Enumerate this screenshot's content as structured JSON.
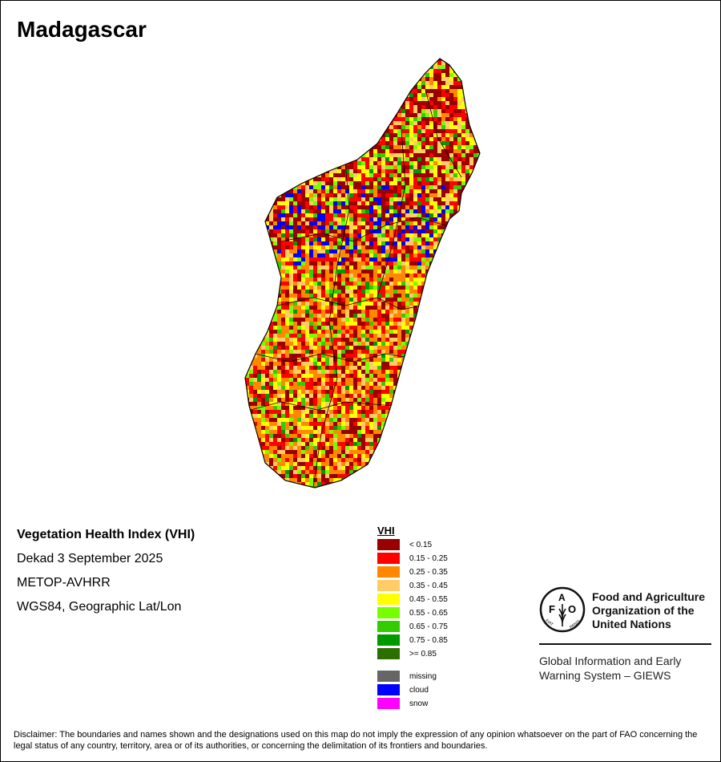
{
  "title": "Madagascar",
  "info": {
    "index_name": "Vegetation Health Index (VHI)",
    "period": "Dekad 3 September 2025",
    "sensor": "METOP-AVHRR",
    "projection": "WGS84, Geographic Lat/Lon"
  },
  "legend": {
    "title": "VHI",
    "classes": [
      {
        "label": "< 0.15",
        "color": "#990000"
      },
      {
        "label": "0.15 - 0.25",
        "color": "#ff0000"
      },
      {
        "label": "0.25 - 0.35",
        "color": "#ff8800"
      },
      {
        "label": "0.35 - 0.45",
        "color": "#ffcc66"
      },
      {
        "label": "0.45 - 0.55",
        "color": "#ffff00"
      },
      {
        "label": "0.55 - 0.65",
        "color": "#77ff00"
      },
      {
        "label": "0.65 - 0.75",
        "color": "#33cc00"
      },
      {
        "label": "0.75 - 0.85",
        "color": "#009900"
      },
      {
        "label": ">= 0.85",
        "color": "#2d6e00"
      }
    ],
    "special": [
      {
        "label": "missing",
        "color": "#666666"
      },
      {
        "label": "cloud",
        "color": "#0000ff"
      },
      {
        "label": "snow",
        "color": "#ff00ff"
      }
    ]
  },
  "logo": {
    "emblem_text": "FAO FIAT PANIS",
    "org_name_lines": [
      "Food and Agriculture",
      "Organization of the",
      "United Nations"
    ],
    "program_lines": [
      "Global Information and Early",
      "Warning System – GIEWS"
    ]
  },
  "disclaimer": "Disclaimer: The boundaries and names shown and the designations used on this map do not imply the expression of any opinion whatsoever on the part of FAO concerning the legal status of any country, territory, area or of its authorities, or concerning the delimitation of its frontiers and boundaries."
}
